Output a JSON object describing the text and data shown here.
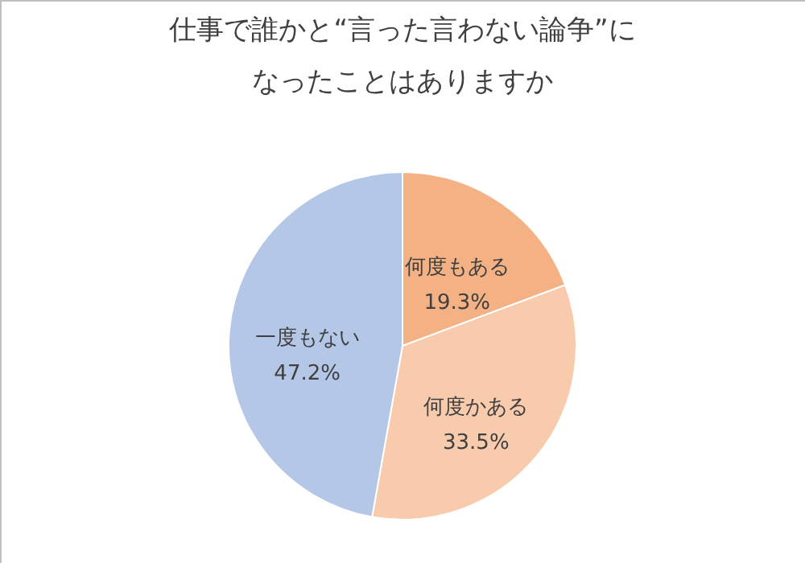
{
  "chart_data": {
    "type": "pie",
    "title": "仕事で誰かと“言った言わない論争”になったことはありますか",
    "categories": [
      "何度もある",
      "何度かある",
      "一度もない"
    ],
    "values": [
      19.3,
      33.5,
      47.2
    ],
    "value_labels": [
      "19.3%",
      "33.5%",
      "47.2%"
    ],
    "colors": [
      "#f4b183",
      "#f8cbad",
      "#b4c7e7"
    ]
  }
}
